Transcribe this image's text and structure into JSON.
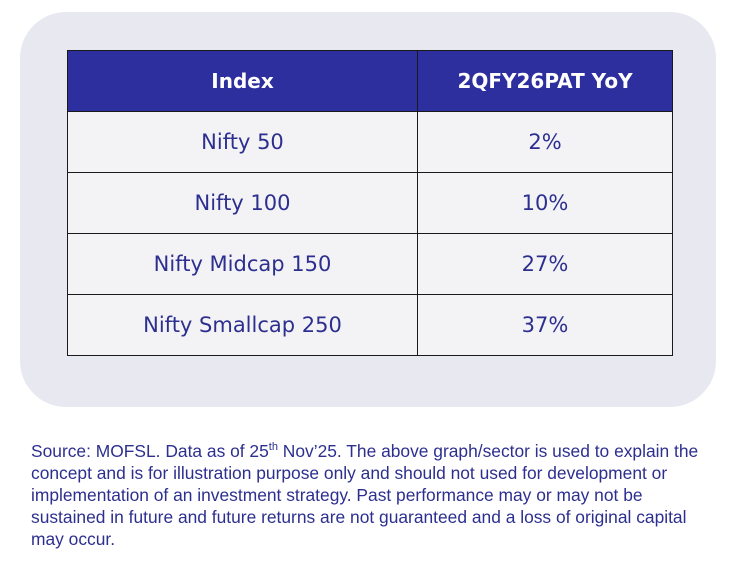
{
  "table": {
    "header": [
      "Index",
      "2QFY26PAT YoY"
    ],
    "rows": [
      [
        "Nifty 50",
        "2%"
      ],
      [
        "Nifty 100",
        "10%"
      ],
      [
        "Nifty Midcap 150",
        "27%"
      ],
      [
        "Nifty Smallcap 250",
        "37%"
      ]
    ]
  },
  "footnote": {
    "before": "Source: MOFSL. Data as of 25",
    "sup": "th",
    "after": " Nov’25. The above graph/sector is used to explain the concept and is for illustration purpose only and should not used for development or implementation of an investment strategy. Past performance may or may not be sustained in future and future returns are not guaranteed and a loss of original capital may occur."
  }
}
